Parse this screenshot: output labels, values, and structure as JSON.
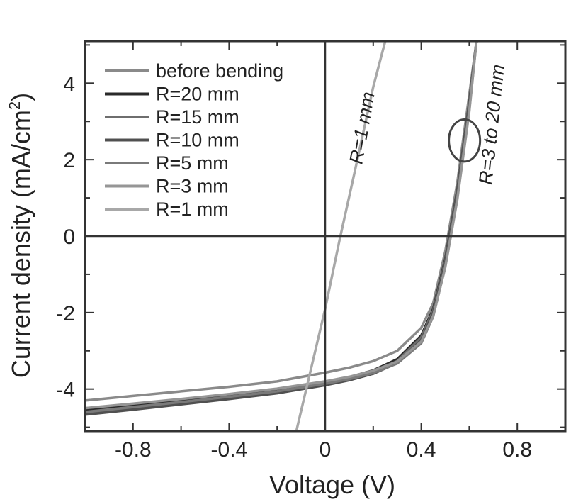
{
  "chart_data": {
    "type": "line",
    "xlabel": "Voltage (V)",
    "ylabel_main": "Current density (mA/cm",
    "ylabel_sup": "2",
    "ylabel_end": ")",
    "xlim": [
      -1.0,
      1.0
    ],
    "ylim": [
      -5.1,
      5.1
    ],
    "x_ticks": [
      -0.8,
      -0.4,
      0,
      0.4,
      0.8
    ],
    "x_tick_labels": [
      "-0.8",
      "-0.4",
      "0",
      "0.4",
      "0.8"
    ],
    "y_ticks": [
      -4,
      -2,
      0,
      2,
      4
    ],
    "y_tick_labels": [
      "-4",
      "-2",
      "0",
      "2",
      "4"
    ],
    "legend_position": "top-left",
    "grid": false,
    "series": [
      {
        "name": "before bending",
        "color": "#8a8a8a",
        "jsc": 3.55,
        "voc": 0.5,
        "x": [
          -1.0,
          -0.8,
          -0.6,
          -0.4,
          -0.2,
          0.0,
          0.1,
          0.2,
          0.3,
          0.4,
          0.45,
          0.5,
          0.55,
          0.6,
          0.63
        ],
        "y": [
          -4.3,
          -4.18,
          -4.06,
          -3.94,
          -3.8,
          -3.57,
          -3.44,
          -3.27,
          -3.0,
          -2.4,
          -1.75,
          -0.4,
          1.4,
          3.7,
          5.1
        ]
      },
      {
        "name": "R=20 mm",
        "color": "#2a2a2a",
        "jsc": 3.8,
        "voc": 0.51,
        "x": [
          -1.0,
          -0.8,
          -0.6,
          -0.4,
          -0.2,
          0.0,
          0.1,
          0.2,
          0.3,
          0.4,
          0.45,
          0.5,
          0.55,
          0.6,
          0.63
        ],
        "y": [
          -4.55,
          -4.43,
          -4.3,
          -4.16,
          -4.02,
          -3.82,
          -3.69,
          -3.51,
          -3.22,
          -2.6,
          -1.9,
          -0.6,
          1.2,
          3.5,
          5.1
        ]
      },
      {
        "name": "R=15 mm",
        "color": "#6e6e6e",
        "jsc": 3.85,
        "voc": 0.51,
        "x": [
          -1.0,
          -0.8,
          -0.6,
          -0.4,
          -0.2,
          0.0,
          0.1,
          0.2,
          0.3,
          0.4,
          0.45,
          0.5,
          0.55,
          0.6,
          0.63
        ],
        "y": [
          -4.62,
          -4.49,
          -4.36,
          -4.22,
          -4.07,
          -3.87,
          -3.74,
          -3.56,
          -3.27,
          -2.65,
          -1.95,
          -0.65,
          1.15,
          3.45,
          5.1
        ]
      },
      {
        "name": "R=10 mm",
        "color": "#505050",
        "jsc": 3.88,
        "voc": 0.51,
        "x": [
          -1.0,
          -0.8,
          -0.6,
          -0.4,
          -0.2,
          0.0,
          0.1,
          0.2,
          0.3,
          0.4,
          0.45,
          0.5,
          0.55,
          0.6,
          0.63
        ],
        "y": [
          -4.67,
          -4.54,
          -4.4,
          -4.26,
          -4.11,
          -3.9,
          -3.77,
          -3.6,
          -3.32,
          -2.72,
          -2.0,
          -0.7,
          1.1,
          3.4,
          5.1
        ]
      },
      {
        "name": "R=5 mm",
        "color": "#7a7a7a",
        "jsc": 3.85,
        "voc": 0.52,
        "x": [
          -1.0,
          -0.8,
          -0.6,
          -0.4,
          -0.2,
          0.0,
          0.1,
          0.2,
          0.3,
          0.4,
          0.45,
          0.5,
          0.55,
          0.6,
          0.63
        ],
        "y": [
          -4.6,
          -4.47,
          -4.34,
          -4.2,
          -4.06,
          -3.86,
          -3.74,
          -3.58,
          -3.33,
          -2.8,
          -2.1,
          -0.8,
          1.0,
          3.3,
          5.1
        ]
      },
      {
        "name": "R=3 mm",
        "color": "#969696",
        "jsc": 3.8,
        "voc": 0.52,
        "x": [
          -1.0,
          -0.8,
          -0.6,
          -0.4,
          -0.2,
          0.0,
          0.1,
          0.2,
          0.3,
          0.4,
          0.45,
          0.5,
          0.55,
          0.6,
          0.63
        ],
        "y": [
          -4.5,
          -4.38,
          -4.26,
          -4.13,
          -3.99,
          -3.8,
          -3.68,
          -3.52,
          -3.28,
          -2.76,
          -2.08,
          -0.82,
          0.95,
          3.25,
          5.1
        ]
      },
      {
        "name": "R=1 mm",
        "color": "#a8a8a8",
        "jsc": 1.9,
        "voc": 0.06,
        "x": [
          -0.12,
          0.0,
          0.06,
          0.12,
          0.2,
          0.25
        ],
        "y": [
          -5.1,
          -1.9,
          -0.1,
          1.6,
          3.9,
          5.1
        ]
      }
    ],
    "annotations": [
      {
        "text": "R=1 mm",
        "x": 0.18,
        "y": 2.8,
        "rotation": -80
      },
      {
        "text": "R=3 to 20 mm",
        "x": 0.72,
        "y": 2.9,
        "rotation": -84
      }
    ],
    "ellipse": {
      "cx": 0.58,
      "cy": 2.5,
      "rx": 0.065,
      "ry": 0.55
    }
  }
}
